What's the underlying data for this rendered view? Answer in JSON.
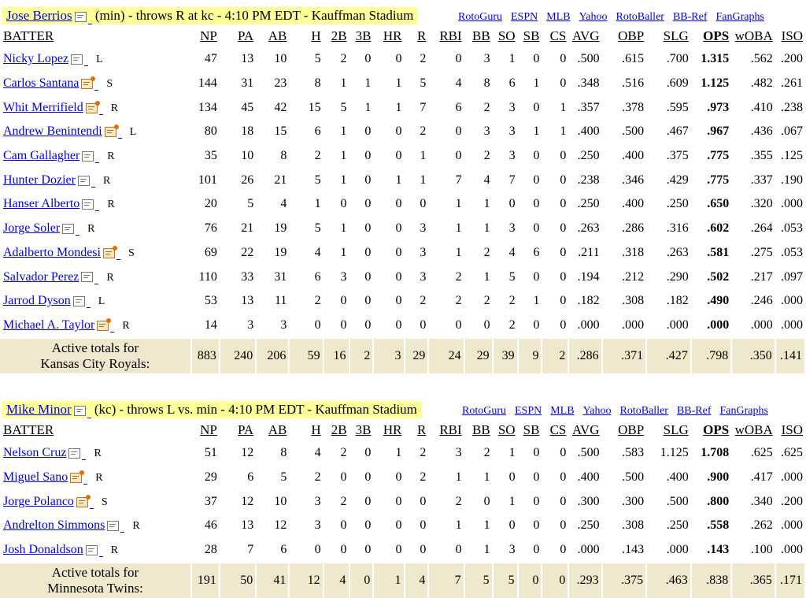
{
  "columns": [
    "BATTER",
    "NP",
    "PA",
    "AB",
    "H",
    "2B",
    "3B",
    "HR",
    "R",
    "RBI",
    "BB",
    "SO",
    "SB",
    "CS",
    "AVG",
    "OBP",
    "SLG",
    "OPS",
    "wOBA",
    "ISO"
  ],
  "links": [
    "RotoGuru",
    "ESPN",
    "MLB",
    "Yahoo",
    "RotoBaller",
    "BB-Ref",
    "FanGraphs"
  ],
  "sections": [
    {
      "pitcher_name": "Jose Berrios",
      "pitcher_info": "(min) - throws R at kc - 4:10 PM EDT - Kauffman Stadium",
      "rows": [
        {
          "name": "Nicky Lopez",
          "note": "plain",
          "hand": "L",
          "stats": [
            "47",
            "13",
            "10",
            "5",
            "2",
            "0",
            "0",
            "2",
            "0",
            "3",
            "1",
            "0",
            "0",
            ".500",
            ".615",
            ".700",
            "1.315",
            ".562",
            ".200"
          ]
        },
        {
          "name": "Carlos Santana",
          "note": "news",
          "hand": "S",
          "stats": [
            "144",
            "31",
            "23",
            "8",
            "1",
            "1",
            "1",
            "5",
            "4",
            "8",
            "6",
            "1",
            "0",
            ".348",
            ".516",
            ".609",
            "1.125",
            ".482",
            ".261"
          ]
        },
        {
          "name": "Whit Merrifield",
          "note": "news",
          "hand": "R",
          "stats": [
            "134",
            "45",
            "42",
            "15",
            "5",
            "1",
            "1",
            "7",
            "6",
            "2",
            "3",
            "0",
            "1",
            ".357",
            ".378",
            ".595",
            ".973",
            ".410",
            ".238"
          ]
        },
        {
          "name": "Andrew Benintendi",
          "note": "news",
          "hand": "L",
          "stats": [
            "80",
            "18",
            "15",
            "6",
            "1",
            "0",
            "0",
            "2",
            "0",
            "3",
            "3",
            "1",
            "1",
            ".400",
            ".500",
            ".467",
            ".967",
            ".436",
            ".067"
          ]
        },
        {
          "name": "Cam Gallagher",
          "note": "plain",
          "hand": "R",
          "stats": [
            "35",
            "10",
            "8",
            "2",
            "1",
            "0",
            "0",
            "1",
            "0",
            "2",
            "3",
            "0",
            "0",
            ".250",
            ".400",
            ".375",
            ".775",
            ".355",
            ".125"
          ]
        },
        {
          "name": "Hunter Dozier",
          "note": "plain",
          "hand": "R",
          "stats": [
            "101",
            "26",
            "21",
            "5",
            "1",
            "0",
            "1",
            "1",
            "7",
            "4",
            "7",
            "0",
            "0",
            ".238",
            ".346",
            ".429",
            ".775",
            ".337",
            ".190"
          ]
        },
        {
          "name": "Hanser Alberto",
          "note": "plain",
          "hand": "R",
          "stats": [
            "20",
            "5",
            "4",
            "1",
            "0",
            "0",
            "0",
            "0",
            "1",
            "1",
            "0",
            "0",
            "0",
            ".250",
            ".400",
            ".250",
            ".650",
            ".320",
            ".000"
          ]
        },
        {
          "name": "Jorge Soler",
          "note": "plain",
          "hand": "R",
          "stats": [
            "76",
            "21",
            "19",
            "5",
            "1",
            "0",
            "0",
            "3",
            "1",
            "1",
            "3",
            "0",
            "0",
            ".263",
            ".286",
            ".316",
            ".602",
            ".264",
            ".053"
          ]
        },
        {
          "name": "Adalberto Mondesi",
          "note": "news",
          "hand": "S",
          "stats": [
            "69",
            "22",
            "19",
            "4",
            "1",
            "0",
            "0",
            "3",
            "1",
            "2",
            "4",
            "6",
            "0",
            ".211",
            ".318",
            ".263",
            ".581",
            ".275",
            ".053"
          ]
        },
        {
          "name": "Salvador Perez",
          "note": "plain",
          "hand": "R",
          "stats": [
            "110",
            "33",
            "31",
            "6",
            "3",
            "0",
            "0",
            "3",
            "2",
            "1",
            "5",
            "0",
            "0",
            ".194",
            ".212",
            ".290",
            ".502",
            ".217",
            ".097"
          ]
        },
        {
          "name": "Jarrod Dyson",
          "note": "plain",
          "hand": "L",
          "stats": [
            "53",
            "13",
            "11",
            "2",
            "0",
            "0",
            "0",
            "2",
            "2",
            "2",
            "2",
            "1",
            "0",
            ".182",
            ".308",
            ".182",
            ".490",
            ".246",
            ".000"
          ]
        },
        {
          "name": "Michael A. Taylor",
          "note": "news",
          "hand": "R",
          "stats": [
            "14",
            "3",
            "3",
            "0",
            "0",
            "0",
            "0",
            "0",
            "0",
            "0",
            "2",
            "0",
            "0",
            ".000",
            ".000",
            ".000",
            ".000",
            ".000",
            ".000"
          ]
        }
      ],
      "totals_label_1": "Active totals for",
      "totals_label_2": "Kansas City Royals:",
      "totals": [
        "883",
        "240",
        "206",
        "59",
        "16",
        "2",
        "3",
        "29",
        "24",
        "29",
        "39",
        "9",
        "2",
        ".286",
        ".371",
        ".427",
        ".798",
        ".350",
        ".141"
      ]
    },
    {
      "pitcher_name": "Mike Minor",
      "pitcher_info": "(kc) - throws L vs. min - 4:10 PM EDT - Kauffman Stadium",
      "rows": [
        {
          "name": "Nelson Cruz",
          "note": "plain",
          "hand": "R",
          "stats": [
            "51",
            "12",
            "8",
            "4",
            "2",
            "0",
            "1",
            "2",
            "3",
            "2",
            "1",
            "0",
            "0",
            ".500",
            ".583",
            "1.125",
            "1.708",
            ".625",
            ".625"
          ]
        },
        {
          "name": "Miguel Sano",
          "note": "news",
          "hand": "R",
          "stats": [
            "29",
            "6",
            "5",
            "2",
            "0",
            "0",
            "0",
            "2",
            "1",
            "1",
            "0",
            "0",
            "0",
            ".400",
            ".500",
            ".400",
            ".900",
            ".417",
            ".000"
          ]
        },
        {
          "name": "Jorge Polanco",
          "note": "news",
          "hand": "S",
          "stats": [
            "37",
            "12",
            "10",
            "3",
            "2",
            "0",
            "0",
            "0",
            "2",
            "0",
            "1",
            "0",
            "0",
            ".300",
            ".300",
            ".500",
            ".800",
            ".340",
            ".200"
          ]
        },
        {
          "name": "Andrelton Simmons",
          "note": "plain",
          "hand": "R",
          "stats": [
            "46",
            "13",
            "12",
            "3",
            "0",
            "0",
            "0",
            "0",
            "1",
            "1",
            "0",
            "0",
            "0",
            ".250",
            ".308",
            ".250",
            ".558",
            ".262",
            ".000"
          ]
        },
        {
          "name": "Josh Donaldson",
          "note": "plain",
          "hand": "R",
          "stats": [
            "28",
            "7",
            "6",
            "0",
            "0",
            "0",
            "0",
            "0",
            "0",
            "1",
            "3",
            "0",
            "0",
            ".000",
            ".143",
            ".000",
            ".143",
            ".100",
            ".000"
          ]
        }
      ],
      "totals_label_1": "Active totals for",
      "totals_label_2": "Minnesota Twins:",
      "totals": [
        "191",
        "50",
        "41",
        "12",
        "4",
        "0",
        "1",
        "4",
        "7",
        "5",
        "5",
        "0",
        "0",
        ".293",
        ".375",
        ".463",
        ".838",
        ".365",
        ".171"
      ]
    }
  ]
}
